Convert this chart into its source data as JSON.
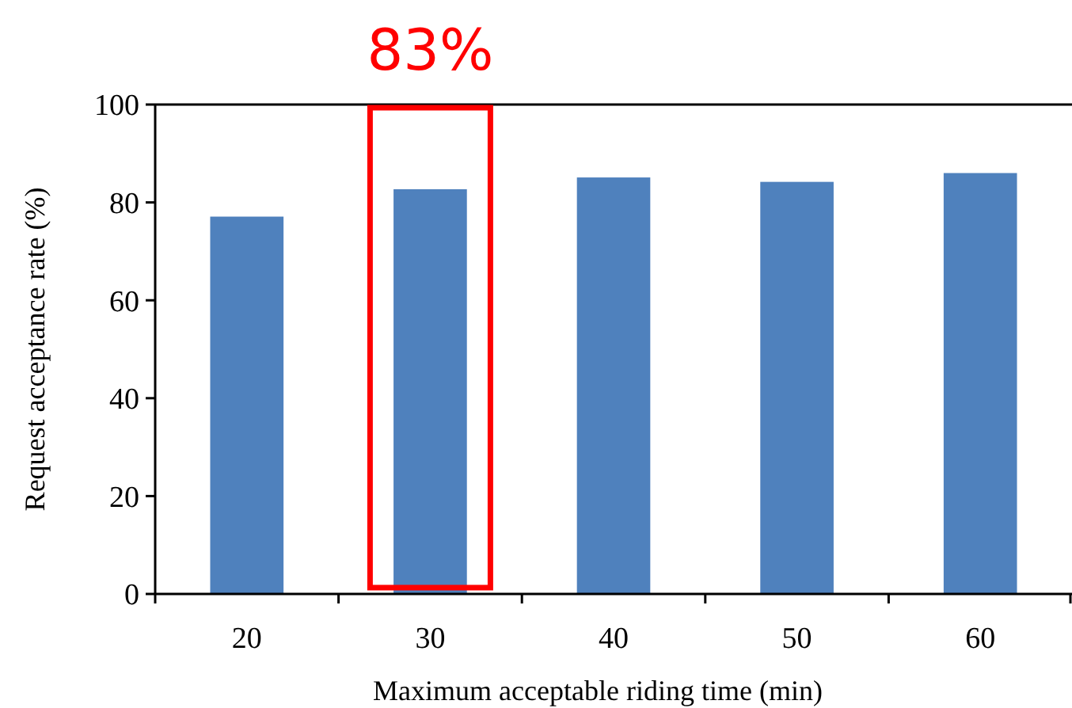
{
  "chart_data": {
    "type": "bar",
    "xlabel": "Maximum acceptable riding time (min)",
    "ylabel": "Request acceptance rate (%)",
    "categories": [
      "20",
      "30",
      "40",
      "50",
      "60"
    ],
    "values": [
      77.1,
      82.7,
      85.1,
      84.2,
      86.0
    ],
    "color": "#4f81bd",
    "ylim": [
      0,
      100
    ],
    "yticks": [
      0,
      20,
      40,
      60,
      80,
      100
    ],
    "grid": false,
    "annotations": [
      "83%"
    ]
  }
}
